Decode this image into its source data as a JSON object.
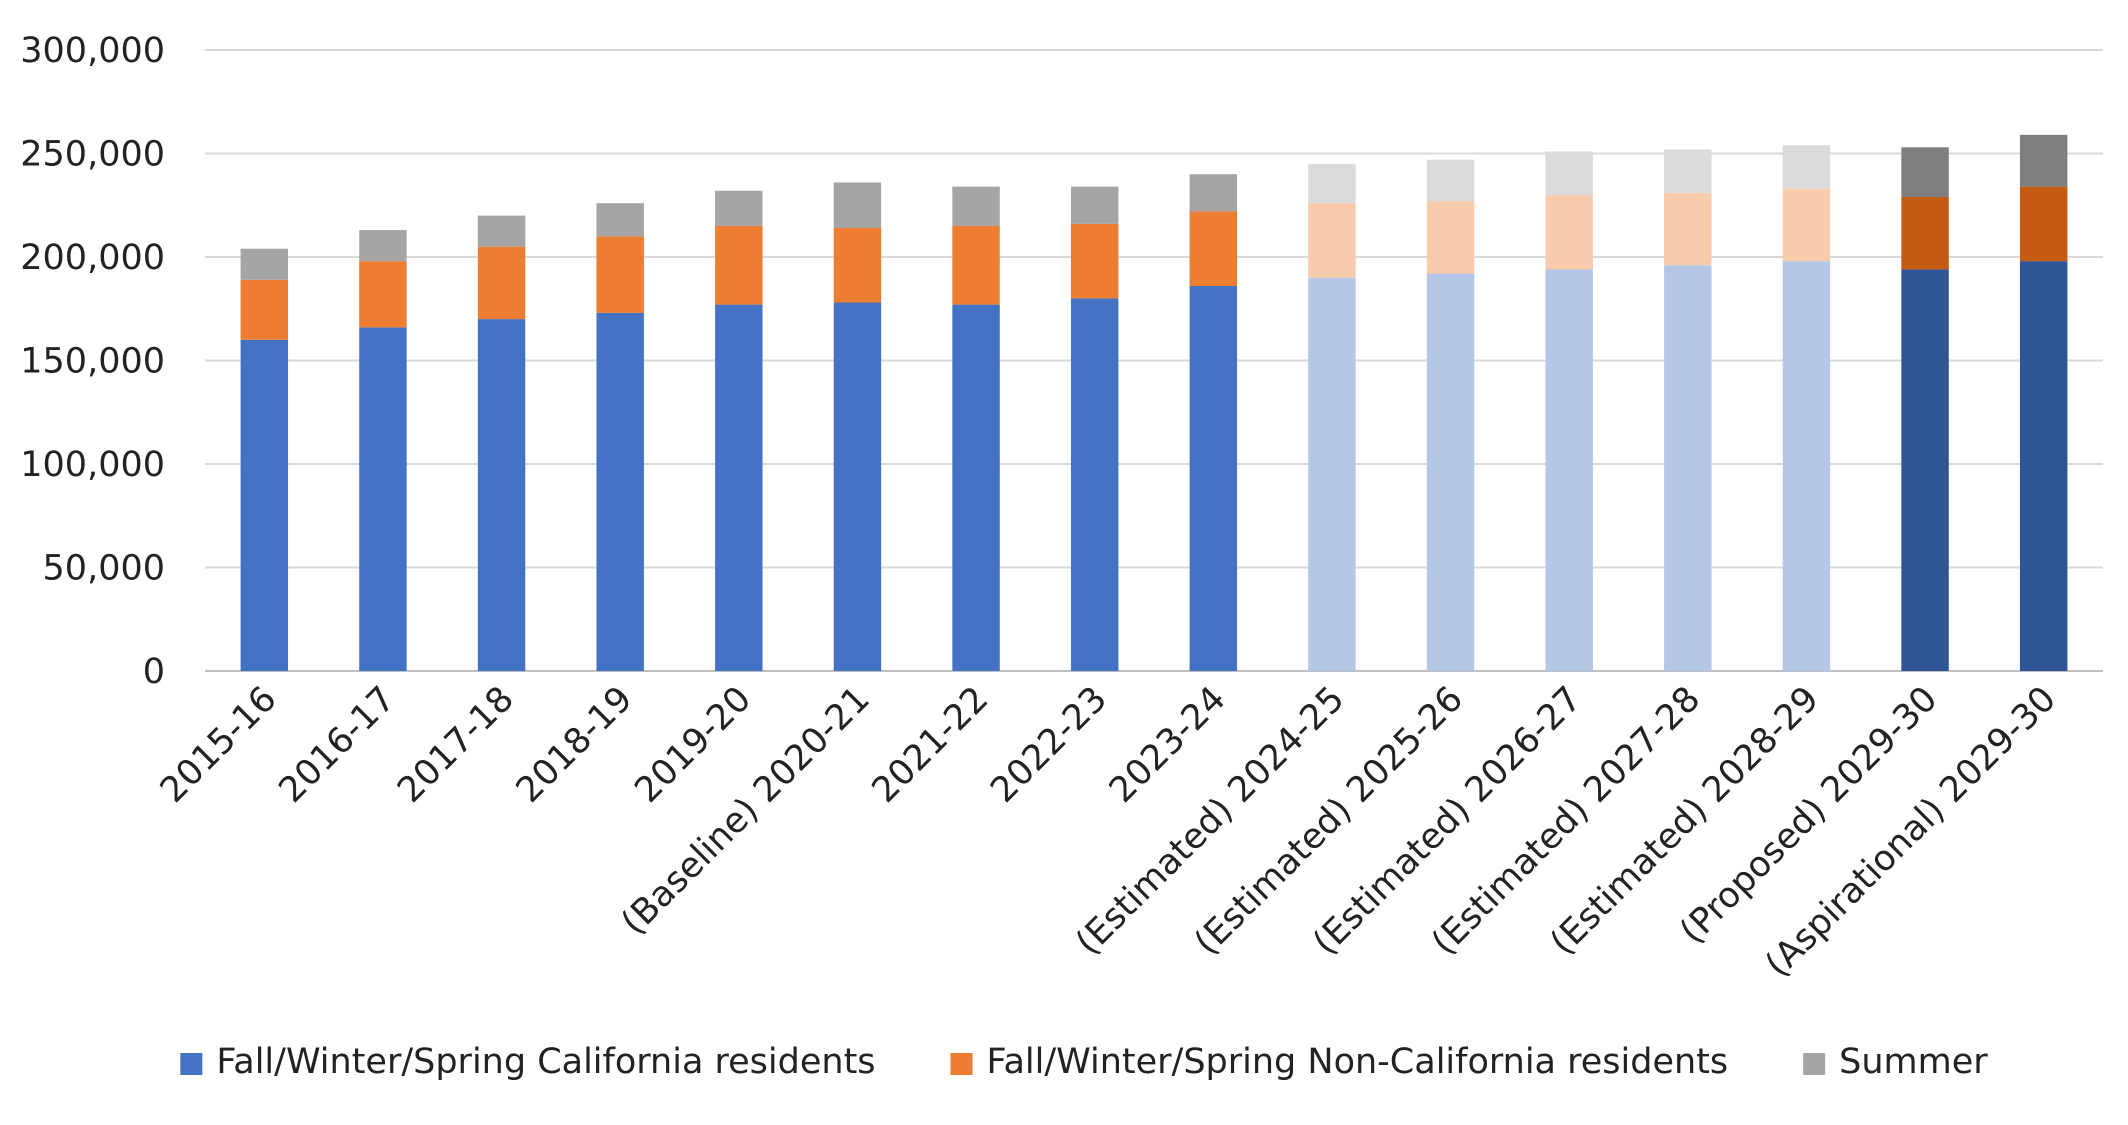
{
  "chart_data": {
    "type": "bar",
    "stacked": true,
    "title": "",
    "xlabel": "",
    "ylabel": "",
    "ylim": [
      0,
      300000
    ],
    "yticks": [
      0,
      50000,
      100000,
      150000,
      200000,
      250000,
      300000
    ],
    "ytick_labels": [
      "0",
      "50,000",
      "100,000",
      "150,000",
      "200,000",
      "250,000",
      "300,000"
    ],
    "grid": true,
    "legend_position": "bottom",
    "categories": [
      "2015-16",
      "2016-17",
      "2017-18",
      "2018-19",
      "2019-20",
      "(Baseline) 2020-21",
      "2021-22",
      "2022-23",
      "2023-24",
      "(Estimated) 2024-25",
      "(Estimated) 2025-26",
      "(Estimated) 2026-27",
      "(Estimated) 2027-28",
      "(Estimated) 2028-29",
      "(Proposed) 2029-30",
      "(Aspirational) 2029-30"
    ],
    "category_style": [
      "actual",
      "actual",
      "actual",
      "actual",
      "actual",
      "actual",
      "actual",
      "actual",
      "actual",
      "estimated",
      "estimated",
      "estimated",
      "estimated",
      "estimated",
      "target",
      "target"
    ],
    "series": [
      {
        "name": "Fall/Winter/Spring California residents",
        "colors": {
          "actual": "#4472C4",
          "estimated": "#B4C7E7",
          "target": "#2F5597"
        },
        "values": [
          160000,
          166000,
          170000,
          173000,
          177000,
          178000,
          177000,
          180000,
          186000,
          190000,
          192000,
          194000,
          196000,
          198000,
          194000,
          198000
        ]
      },
      {
        "name": "Fall/Winter/Spring Non-California residents",
        "colors": {
          "actual": "#ED7D31",
          "estimated": "#F8CBAD",
          "target": "#C55A11"
        },
        "values": [
          29000,
          32000,
          35000,
          37000,
          38000,
          36000,
          38000,
          36000,
          36000,
          36000,
          35000,
          36000,
          35000,
          35000,
          35000,
          36000
        ]
      },
      {
        "name": "Summer",
        "colors": {
          "actual": "#A5A5A5",
          "estimated": "#DBDBDB",
          "target": "#7F7F7F"
        },
        "values": [
          15000,
          15000,
          15000,
          16000,
          17000,
          22000,
          19000,
          18000,
          18000,
          19000,
          20000,
          21000,
          21000,
          21000,
          24000,
          25000
        ]
      }
    ]
  }
}
